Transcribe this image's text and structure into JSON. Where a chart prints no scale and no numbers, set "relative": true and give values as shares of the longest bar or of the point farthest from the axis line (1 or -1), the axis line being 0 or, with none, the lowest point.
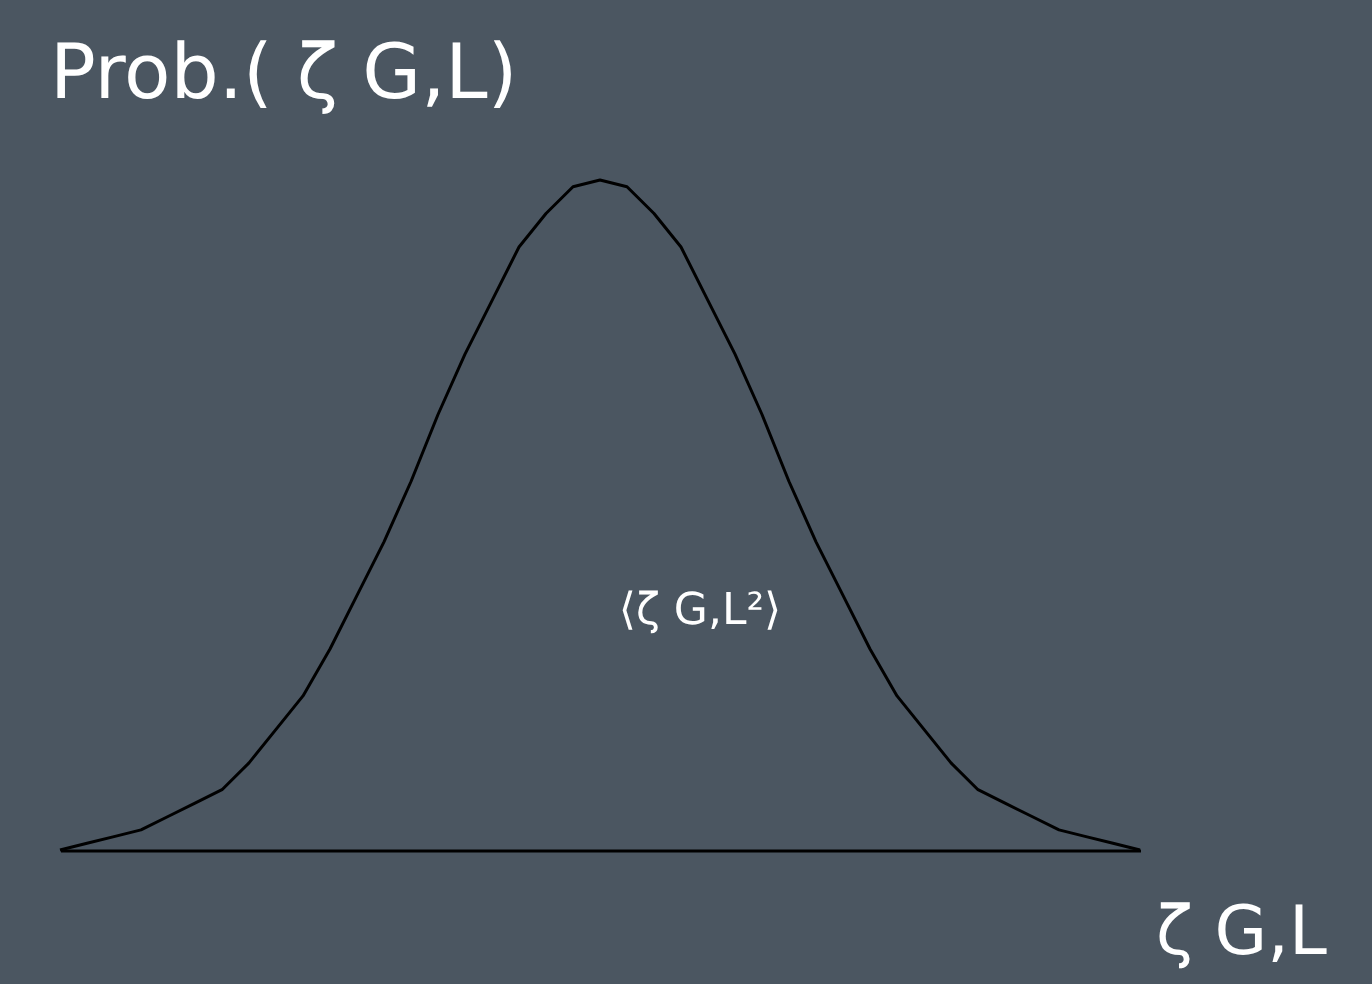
{
  "chart_data": {
    "type": "line",
    "relative": true,
    "tick_labels": false,
    "grid": false,
    "legend": false,
    "marker": "none",
    "ylabel": "Prob.( ζ G,L)",
    "xlabel": "ζ G,L",
    "annotations": [
      "⟨ζ G,L²⟩"
    ],
    "categories": [
      null,
      null,
      null,
      null,
      null,
      null,
      null,
      null,
      null,
      null,
      null,
      null,
      null,
      null,
      null,
      null,
      null,
      null,
      null,
      null,
      null,
      null,
      null,
      null,
      null,
      null,
      null,
      null,
      null,
      null,
      null,
      null,
      null,
      null,
      null,
      null,
      null,
      null,
      null,
      null,
      null
    ],
    "series": [
      {
        "color": "#000000",
        "values": [
          0,
          0.01,
          0.02,
          0.03,
          0.05,
          0.07,
          0.09,
          0.13,
          0.18,
          0.23,
          0.3,
          0.38,
          0.46,
          0.55,
          0.65,
          0.74,
          0.82,
          0.9,
          0.95,
          0.99,
          1,
          0.99,
          0.95,
          0.9,
          0.82,
          0.74,
          0.65,
          0.55,
          0.46,
          0.38,
          0.3,
          0.23,
          0.18,
          0.13,
          0.09,
          0.07,
          0.05,
          0.03,
          0.02,
          0.01,
          0
        ]
      }
    ]
  }
}
